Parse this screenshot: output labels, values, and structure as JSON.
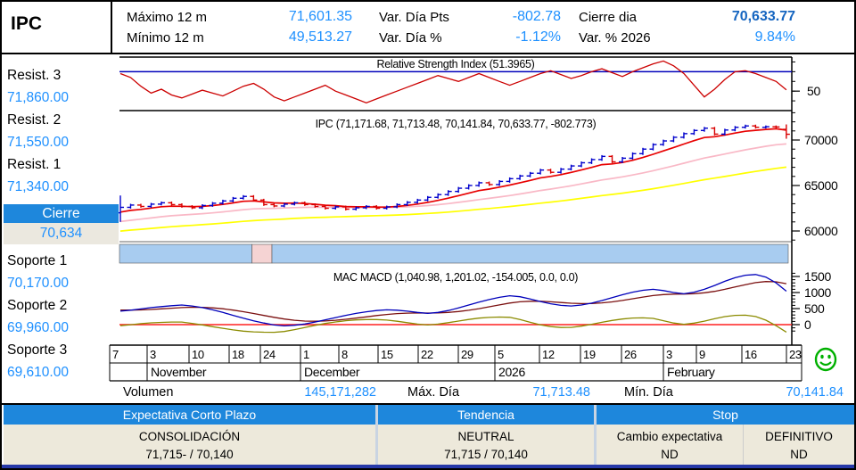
{
  "header": {
    "symbol": "IPC",
    "maximo_label": "Máximo 12 m",
    "maximo_value": "71,601.35",
    "minimo_label": "Mínimo 12 m",
    "minimo_value": "49,513.27",
    "var_pts_label": "Var. Día Pts",
    "var_pts_value": "-802.78",
    "var_pct_label": "Var. Día %",
    "var_pct_value": "-1.12%",
    "cierre_label": "Cierre dia",
    "cierre_value": "70,633.77",
    "var_ytd_label": "Var. % 2026",
    "var_ytd_value": "9.84%"
  },
  "sidebar": {
    "levels": [
      {
        "label": "Resist. 3",
        "value": "71,860.00"
      },
      {
        "label": "Resist. 2",
        "value": "71,550.00"
      },
      {
        "label": "Resist. 1",
        "value": "71,340.00"
      },
      {
        "label": "Soporte 1",
        "value": "70,170.00"
      },
      {
        "label": "Soporte 2",
        "value": "69,960.00"
      },
      {
        "label": "Soporte 3",
        "value": "69,610.00"
      }
    ],
    "cierre_label": "Cierre",
    "cierre_value": "70,634"
  },
  "footer_stats": {
    "volume_label": "Volumen",
    "volume_value": "145,171,282",
    "max_label": "Máx. Día",
    "max_value": "71,713.48",
    "min_label": "Mín. Día",
    "min_value": "70,141.84"
  },
  "summary_table": {
    "header1": "Expectativa Corto Plazo",
    "header2": "Tendencia",
    "header3": "Stop",
    "expectativa_value": "CONSOLIDACIÓN",
    "expectativa_range": "71,715- / 70,140",
    "tendencia_value": "NEUTRAL",
    "tendencia_range": "71,715 / 70,140",
    "stop_cambio_label": "Cambio expectativa",
    "stop_definitivo_label": "DEFINITIVO",
    "stop_cambio_value": "ND",
    "stop_definitivo_value": "ND"
  },
  "colors": {
    "value_blue": "#1E90FF",
    "dark_blue": "#1565C0",
    "table_header_blue": "#1E87DC",
    "cream": "#EDE9DB",
    "cierre_cell_bg": "#EBE8DF",
    "navy_bar": "#2638A8",
    "band_blue": "#A8CCF0",
    "band_pink": "#F5D3D3"
  },
  "chart_data": {
    "type": "financial-multi-panel",
    "instrument": "IPC",
    "rsi": {
      "title": "Relative Strength Index (51.3965)",
      "current": 51.3965,
      "overbought_level": 70,
      "ytick_value": 50,
      "ytick_label": "50",
      "values": [
        68,
        64,
        55,
        48,
        52,
        46,
        43,
        47,
        51,
        48,
        45,
        50,
        55,
        58,
        52,
        44,
        40,
        44,
        48,
        52,
        56,
        50,
        46,
        42,
        38,
        42,
        46,
        50,
        54,
        58,
        62,
        66,
        63,
        60,
        64,
        68,
        64,
        60,
        56,
        60,
        64,
        68,
        71,
        67,
        63,
        66,
        70,
        73,
        69,
        65,
        70,
        74,
        78,
        81,
        76,
        68,
        56,
        44,
        52,
        62,
        70,
        71,
        68,
        64,
        60,
        51.4
      ]
    },
    "price": {
      "title": "IPC (71,171.68, 71,713.48, 70,141.84, 70,633.77, -802.773)",
      "open": 71171.68,
      "high": 71713.48,
      "low": 70141.84,
      "close": 70633.77,
      "change": -802.773,
      "yticks": [
        60000,
        65000,
        70000
      ],
      "closes": [
        62600,
        62850,
        62700,
        62950,
        63100,
        62900,
        62700,
        62550,
        62800,
        63050,
        63300,
        63600,
        63800,
        63400,
        62900,
        62750,
        62950,
        63100,
        62900,
        62700,
        62500,
        62650,
        62400,
        62550,
        62700,
        62500,
        62650,
        62900,
        63150,
        63400,
        63700,
        64000,
        64350,
        64700,
        65000,
        65300,
        65100,
        65450,
        65750,
        66050,
        66350,
        66700,
        66450,
        66800,
        67150,
        67500,
        67850,
        68200,
        67600,
        68000,
        68500,
        69000,
        69500,
        69900,
        70300,
        70700,
        71050,
        71300,
        70650,
        71100,
        71400,
        71550,
        71400,
        71460,
        71436,
        70633.77
      ],
      "special_bars": {
        "0": [
          62000,
          63900,
          61000,
          62600
        ],
        "65": [
          71171.68,
          71713.48,
          70141.84,
          70633.77
        ]
      }
    },
    "band": {
      "segments": [
        [
          0,
          0.198,
          "blue"
        ],
        [
          0.198,
          0.228,
          "pink"
        ],
        [
          0.228,
          1.0,
          "blue"
        ]
      ]
    },
    "macd": {
      "title": "MAC MACD (1,040.98, 1,201.02, -154.005, 0.0, 0.0)",
      "macd_current": 1040.98,
      "signal_current": 1201.02,
      "hist_current": -154.005,
      "yticks": [
        0,
        500,
        1000,
        1500
      ],
      "values": [
        420,
        450,
        490,
        530,
        560,
        590,
        610,
        580,
        530,
        460,
        380,
        290,
        200,
        120,
        50,
        -10,
        -40,
        -20,
        20,
        80,
        150,
        220,
        290,
        350,
        400,
        440,
        460,
        450,
        420,
        380,
        350,
        380,
        440,
        520,
        610,
        700,
        780,
        850,
        900,
        870,
        800,
        720,
        650,
        600,
        580,
        610,
        670,
        750,
        840,
        930,
        1010,
        1070,
        1100,
        1060,
        1000,
        960,
        1010,
        1100,
        1220,
        1350,
        1460,
        1540,
        1560,
        1480,
        1300,
        1041
      ]
    },
    "xaxis": {
      "days": [
        [
          "7",
          121
        ],
        [
          "3",
          163
        ],
        [
          "10",
          210
        ],
        [
          "18",
          255
        ],
        [
          "24",
          290
        ],
        [
          "1",
          335
        ],
        [
          "8",
          378
        ],
        [
          "15",
          422
        ],
        [
          "22",
          467
        ],
        [
          "29",
          512
        ],
        [
          "5",
          553
        ],
        [
          "12",
          603
        ],
        [
          "19",
          649
        ],
        [
          "26",
          695
        ],
        [
          "3",
          742
        ],
        [
          "9",
          779
        ],
        [
          "16",
          830
        ],
        [
          "23",
          880
        ]
      ],
      "months": [
        [
          "November",
          163
        ],
        [
          "December",
          335
        ],
        [
          "2026",
          553
        ],
        [
          "February",
          742
        ]
      ],
      "left_edge": 121,
      "right_edge": 897
    },
    "chart_colors": {
      "rsi_line": "#CC0000",
      "overbought_line": "#0000BB",
      "candle_up": "#0000CC",
      "candle_down": "#D80000",
      "ma_fast": "#E80000",
      "ma_mid": "#F9B8C6",
      "ma_slow": "#FFFF00",
      "macd_line": "#0000BB",
      "signal_line": "#7B1010",
      "hist_line": "#8B8B00",
      "zero_line": "#FF2020"
    }
  }
}
